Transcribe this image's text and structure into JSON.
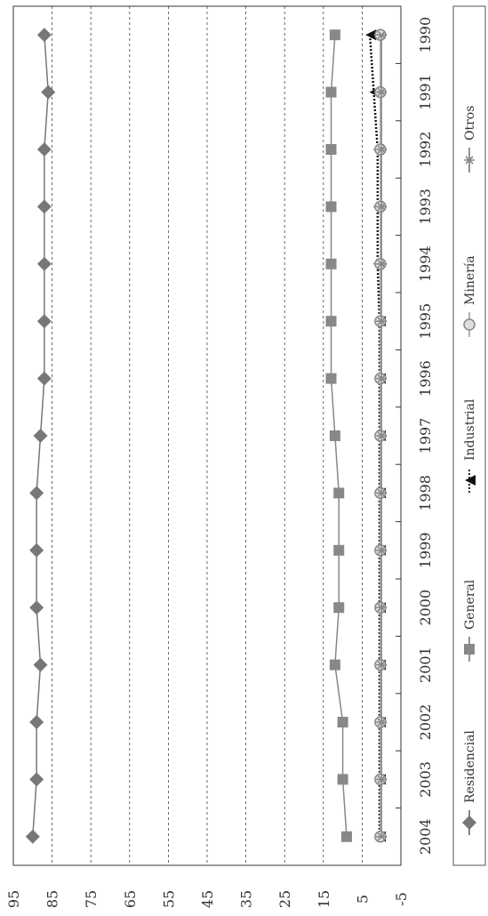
{
  "chart_data": {
    "type": "line",
    "orientation": "rotated-90",
    "x": [
      "1990",
      "1991",
      "1992",
      "1993",
      "1994",
      "1995",
      "1996",
      "1997",
      "1998",
      "1999",
      "2000",
      "2001",
      "2002",
      "2003",
      "2004"
    ],
    "ylim": [
      -5,
      95
    ],
    "yticks": [
      "-5",
      "5",
      "15",
      "25",
      "35",
      "45",
      "55",
      "65",
      "75",
      "85",
      "95"
    ],
    "grid": true,
    "legend_position": "right",
    "series": [
      {
        "name": "Residencial",
        "marker": "diamond",
        "color": "#777777",
        "values": [
          87,
          86,
          87,
          87,
          87,
          87,
          87,
          88,
          89,
          89,
          89,
          88,
          89,
          89,
          90
        ]
      },
      {
        "name": "General",
        "marker": "square",
        "color": "#888888",
        "values": [
          12,
          13,
          13,
          13,
          13,
          13,
          13,
          12,
          11,
          11,
          11,
          12,
          10,
          10,
          9
        ]
      },
      {
        "name": "Industrial",
        "marker": "triangle",
        "color": "#111111",
        "values": [
          3,
          2,
          1,
          1,
          1,
          0.5,
          0.5,
          0.5,
          0.5,
          0.5,
          0.5,
          0.5,
          0.5,
          0.5,
          0.5
        ]
      },
      {
        "name": "Minería",
        "marker": "circle",
        "color": "#aaaaaa",
        "values": [
          0.3,
          0.3,
          0.3,
          0.3,
          0.3,
          0.3,
          0.3,
          0.3,
          0.3,
          0.3,
          0.3,
          0.3,
          0.3,
          0.3,
          0.3
        ]
      },
      {
        "name": "Otros",
        "marker": "asterisk",
        "color": "#888888",
        "values": [
          0,
          0,
          0,
          0,
          0,
          0,
          0,
          0,
          0,
          0,
          0,
          0,
          0,
          0,
          0
        ]
      }
    ]
  }
}
